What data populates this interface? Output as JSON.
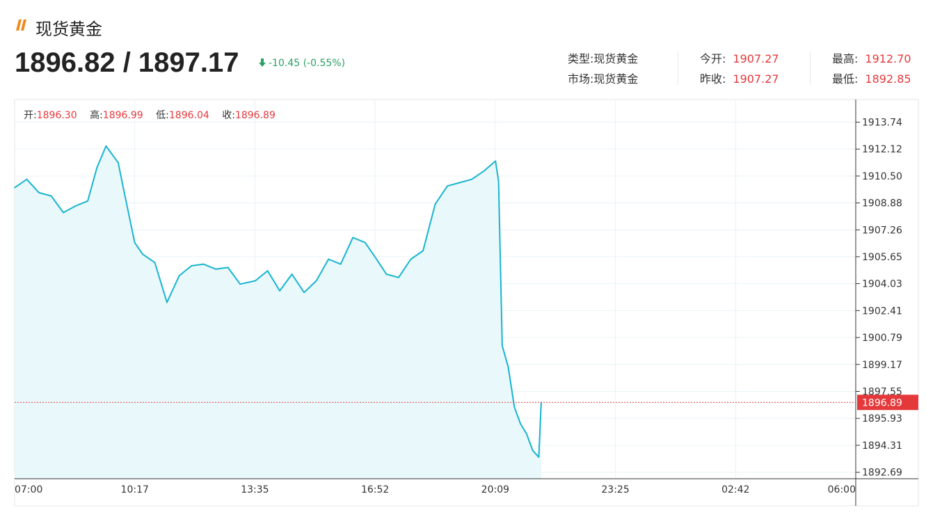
{
  "header": {
    "title": "现货黄金",
    "price": "1896.82 / 1897.17",
    "change": "-10.45 (-0.55%)"
  },
  "info": {
    "type_label": "类型:",
    "type_value": "现货黄金",
    "market_label": "市场:",
    "market_value": "现货黄金",
    "open_label": "今开:",
    "open_value": "1907.27",
    "prev_label": "昨收:",
    "prev_value": "1907.27",
    "high_label": "最高:",
    "high_value": "1912.70",
    "low_label": "最低:",
    "low_value": "1892.85"
  },
  "ohlc": {
    "open_label": "开:",
    "open_value": "1896.30",
    "high_label": "高:",
    "high_value": "1896.99",
    "low_label": "低:",
    "low_value": "1896.04",
    "close_label": "收:",
    "close_value": "1896.89"
  },
  "colors": {
    "line": "#18b4cf",
    "fill": "#e8f8fb",
    "down": "#2aa064",
    "red": "#e5383b",
    "accent": "#f08a1c"
  },
  "chart_data": {
    "type": "area",
    "x_ticks": [
      "07:00",
      "10:17",
      "13:35",
      "16:52",
      "20:09",
      "23:25",
      "02:42",
      "06:00"
    ],
    "y_ticks": [
      "1913.74",
      "1912.12",
      "1910.50",
      "1908.88",
      "1907.26",
      "1905.65",
      "1904.03",
      "1902.41",
      "1900.79",
      "1899.17",
      "1897.55",
      "1895.93",
      "1894.31",
      "1892.69"
    ],
    "ylim": [
      1892.3,
      1915.1
    ],
    "current": {
      "value": 1896.89,
      "label": "1896.89"
    },
    "x": [
      "07:00",
      "07:20",
      "07:40",
      "08:00",
      "08:20",
      "08:40",
      "09:00",
      "09:15",
      "09:30",
      "09:50",
      "10:00",
      "10:17",
      "10:30",
      "10:50",
      "11:10",
      "11:30",
      "11:50",
      "12:10",
      "12:30",
      "12:50",
      "13:10",
      "13:35",
      "13:55",
      "14:15",
      "14:35",
      "14:55",
      "15:15",
      "15:35",
      "15:55",
      "16:15",
      "16:35",
      "16:52",
      "17:10",
      "17:30",
      "17:50",
      "18:10",
      "18:30",
      "18:50",
      "19:10",
      "19:30",
      "19:50",
      "20:09",
      "20:14",
      "20:20",
      "20:30",
      "20:40",
      "20:50",
      "21:00",
      "21:10",
      "21:20",
      "21:24"
    ],
    "values": [
      1909.8,
      1910.3,
      1909.5,
      1909.3,
      1908.3,
      1908.7,
      1909.0,
      1911.0,
      1912.3,
      1911.3,
      1909.5,
      1906.5,
      1905.8,
      1905.3,
      1902.9,
      1904.5,
      1905.1,
      1905.2,
      1904.9,
      1905.0,
      1904.0,
      1904.2,
      1904.8,
      1903.6,
      1904.6,
      1903.5,
      1904.2,
      1905.5,
      1905.2,
      1906.8,
      1906.5,
      1905.6,
      1904.6,
      1904.4,
      1905.5,
      1906.0,
      1908.8,
      1909.9,
      1910.1,
      1910.3,
      1910.8,
      1911.4,
      1910.2,
      1900.3,
      1899.0,
      1896.6,
      1895.6,
      1895.0,
      1894.0,
      1893.6,
      1896.9
    ]
  }
}
